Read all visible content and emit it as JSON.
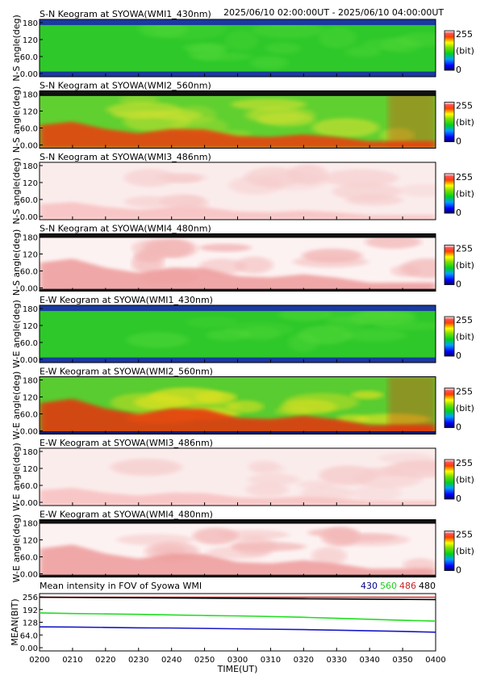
{
  "header": {
    "time_range": "2025/06/10 02:00:00UT - 2025/06/10 04:00:00UT"
  },
  "keograms": [
    {
      "title": "S-N Keogram at SYOWA(WMI1_430nm)",
      "ylabel": "N-S angle(deg)",
      "scheme": "green"
    },
    {
      "title": "S-N Keogram at SYOWA(WMI2_560nm)",
      "ylabel": "N-S angle(deg)",
      "scheme": "warm"
    },
    {
      "title": "S-N Keogram at SYOWA(WMI3_486nm)",
      "ylabel": "N-S angle(deg)",
      "scheme": "pale"
    },
    {
      "title": "S-N Keogram at SYOWA(WMI4_480nm)",
      "ylabel": "N-S angle(deg)",
      "scheme": "pale-strong"
    },
    {
      "title": "E-W Keogram at SYOWA(WMI1_430nm)",
      "ylabel": "W-E angle(deg)",
      "scheme": "green"
    },
    {
      "title": "E-W Keogram at SYOWA(WMI2_560nm)",
      "ylabel": "W-E angle(deg)",
      "scheme": "warm-strong"
    },
    {
      "title": "E-W Keogram at SYOWA(WMI3_486nm)",
      "ylabel": "W-E angle(deg)",
      "scheme": "pale"
    },
    {
      "title": "E-W Keogram at SYOWA(WMI4_480nm)",
      "ylabel": "W-E angle(deg)",
      "scheme": "pale-strong"
    }
  ],
  "keogram_yticks": [
    "180",
    "120",
    "60.0",
    "0.00"
  ],
  "colorbar": {
    "max": "255",
    "unit": "(bit)",
    "min": "0"
  },
  "mean_panel": {
    "title": "Mean intensity in FOV of Syowa WMI",
    "ylabel": "MEAN(BIT)",
    "xlabel": "TIME(UT)",
    "yticks": [
      "256",
      "192",
      "128",
      "64.0",
      "0.00"
    ],
    "legend": [
      {
        "label": "430",
        "color": "#000080"
      },
      {
        "label": "560",
        "color": "#22cc22"
      },
      {
        "label": "486",
        "color": "#cc2222"
      },
      {
        "label": "480",
        "color": "#000000"
      }
    ]
  },
  "x_ticks": [
    "0200",
    "0210",
    "0220",
    "0230",
    "0240",
    "0250",
    "0300",
    "0310",
    "0320",
    "0330",
    "0340",
    "0350",
    "0400"
  ],
  "chart_data": {
    "type": "line",
    "title": "Mean intensity in FOV of Syowa WMI",
    "xlabel": "TIME(UT)",
    "ylabel": "MEAN(BIT)",
    "ylim": [
      0,
      256
    ],
    "x": [
      "0200",
      "0210",
      "0220",
      "0230",
      "0240",
      "0250",
      "0300",
      "0310",
      "0320",
      "0330",
      "0340",
      "0350",
      "0400"
    ],
    "series": [
      {
        "name": "430",
        "color": "#1818c8",
        "values": [
          105,
          104,
          102,
          100,
          99,
          97,
          95,
          93,
          91,
          88,
          85,
          82,
          78
        ]
      },
      {
        "name": "560",
        "color": "#22dd22",
        "values": [
          175,
          172,
          170,
          168,
          165,
          162,
          160,
          157,
          153,
          148,
          143,
          138,
          134
        ]
      },
      {
        "name": "486",
        "color": "#dd2222",
        "values": [
          254,
          254,
          254,
          254,
          254,
          254,
          254,
          254,
          254,
          254,
          254,
          254,
          254
        ]
      },
      {
        "name": "480",
        "color": "#000000",
        "values": [
          254,
          253,
          252,
          251,
          250,
          249,
          248,
          247,
          246,
          245,
          244,
          243,
          242
        ]
      }
    ]
  }
}
